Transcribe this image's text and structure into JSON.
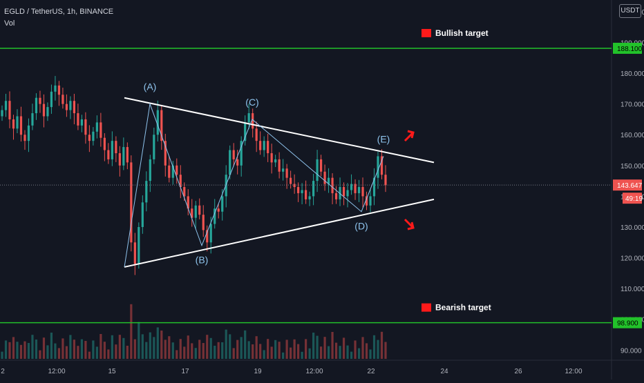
{
  "header": {
    "symbol_line": "EGLD / TetherUS, 1h, BINANCE",
    "volume_label": "Vol"
  },
  "currency_button": "USDT",
  "colors": {
    "background": "#131722",
    "up": "#26a69a",
    "down": "#ef5350",
    "target_line": "#22c22a",
    "trendline": "#ffffff",
    "wave_line": "#8fc4ee",
    "arrow": "#ff1a1a",
    "price_tag": "#ef5350"
  },
  "chart_data": {
    "type": "candlestick",
    "title": "EGLD / TetherUS, 1h, BINANCE",
    "ylim": [
      88.5,
      202
    ],
    "y_ticks": [
      "200.000",
      "190.000",
      "180.000",
      "170.000",
      "160.000",
      "150.000",
      "140.000",
      "130.000",
      "120.000",
      "110.000",
      "100.000",
      "90.000"
    ],
    "x_ticks": [
      "2",
      "12:00",
      "15",
      "17",
      "19",
      "12:00",
      "22",
      "24",
      "26",
      "12:00"
    ],
    "targets": [
      {
        "name": "Bullish target",
        "value": 188.1,
        "tag": "188.100"
      },
      {
        "name": "Bearish target",
        "value": 98.9,
        "tag": "98.900"
      }
    ],
    "last_price": {
      "value": 143.647,
      "label": "143.647",
      "countdown": "49:19"
    },
    "triangle": {
      "upper": {
        "from": {
          "x": "15",
          "y": 172
        },
        "to": {
          "x": "23",
          "y": 151
        }
      },
      "lower": {
        "from": {
          "x": "15",
          "y": 117
        },
        "to": {
          "x": "23",
          "y": 139
        }
      }
    },
    "waves": [
      {
        "label": "(A)",
        "y": 170
      },
      {
        "label": "(B)",
        "y": 124
      },
      {
        "label": "(C)",
        "y": 165
      },
      {
        "label": "(D)",
        "y": 135
      },
      {
        "label": "(E)",
        "y": 153
      }
    ],
    "series": [
      {
        "name": "close",
        "values": [
          168,
          171,
          165,
          162,
          166,
          160,
          158,
          163,
          167,
          172,
          170,
          166,
          169,
          174,
          176,
          173,
          170,
          168,
          171,
          167,
          163,
          165,
          160,
          158,
          161,
          164,
          159,
          155,
          152,
          158,
          154,
          150,
          156,
          151,
          125,
          118,
          130,
          138,
          145,
          152,
          160,
          168,
          158,
          150,
          146,
          150,
          147,
          143,
          140,
          136,
          133,
          137,
          134,
          129,
          125,
          131,
          136,
          135,
          140,
          147,
          155,
          152,
          150,
          158,
          164,
          167,
          162,
          158,
          155,
          158,
          154,
          151,
          152,
          148,
          149,
          146,
          144,
          143,
          141,
          142,
          139,
          140,
          145,
          152,
          148,
          144,
          146,
          141,
          139,
          143,
          140,
          142,
          144,
          141,
          143,
          140,
          137,
          140,
          146,
          153,
          147,
          143.6
        ]
      }
    ]
  }
}
